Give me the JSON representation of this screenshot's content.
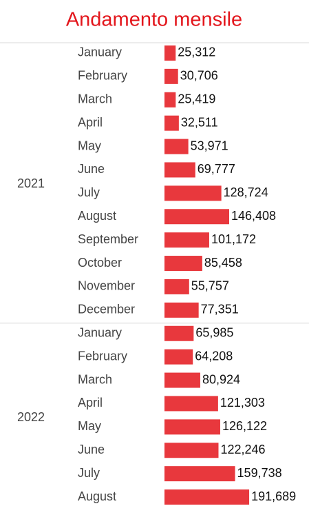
{
  "chart_data": {
    "type": "bar",
    "orientation": "horizontal",
    "title": "Andamento mensile",
    "color": "#e8383d",
    "groups": [
      {
        "name": "2021",
        "categories": [
          "January",
          "February",
          "March",
          "April",
          "May",
          "June",
          "July",
          "August",
          "September",
          "October",
          "November",
          "December"
        ],
        "values": [
          25312,
          30706,
          25419,
          32511,
          53971,
          69777,
          128724,
          146408,
          101172,
          85458,
          55757,
          77351
        ],
        "value_labels": [
          "25,312",
          "30,706",
          "25,419",
          "32,511",
          "53,971",
          "69,777",
          "128,724",
          "146,408",
          "101,172",
          "85,458",
          "55,757",
          "77,351"
        ]
      },
      {
        "name": "2022",
        "categories": [
          "January",
          "February",
          "March",
          "April",
          "May",
          "June",
          "July",
          "August"
        ],
        "values": [
          65985,
          64208,
          80924,
          121303,
          126122,
          122246,
          159738,
          191689
        ],
        "value_labels": [
          "65,985",
          "64,208",
          "80,924",
          "121,303",
          "126,122",
          "122,246",
          "159,738",
          "191,689"
        ]
      }
    ]
  }
}
